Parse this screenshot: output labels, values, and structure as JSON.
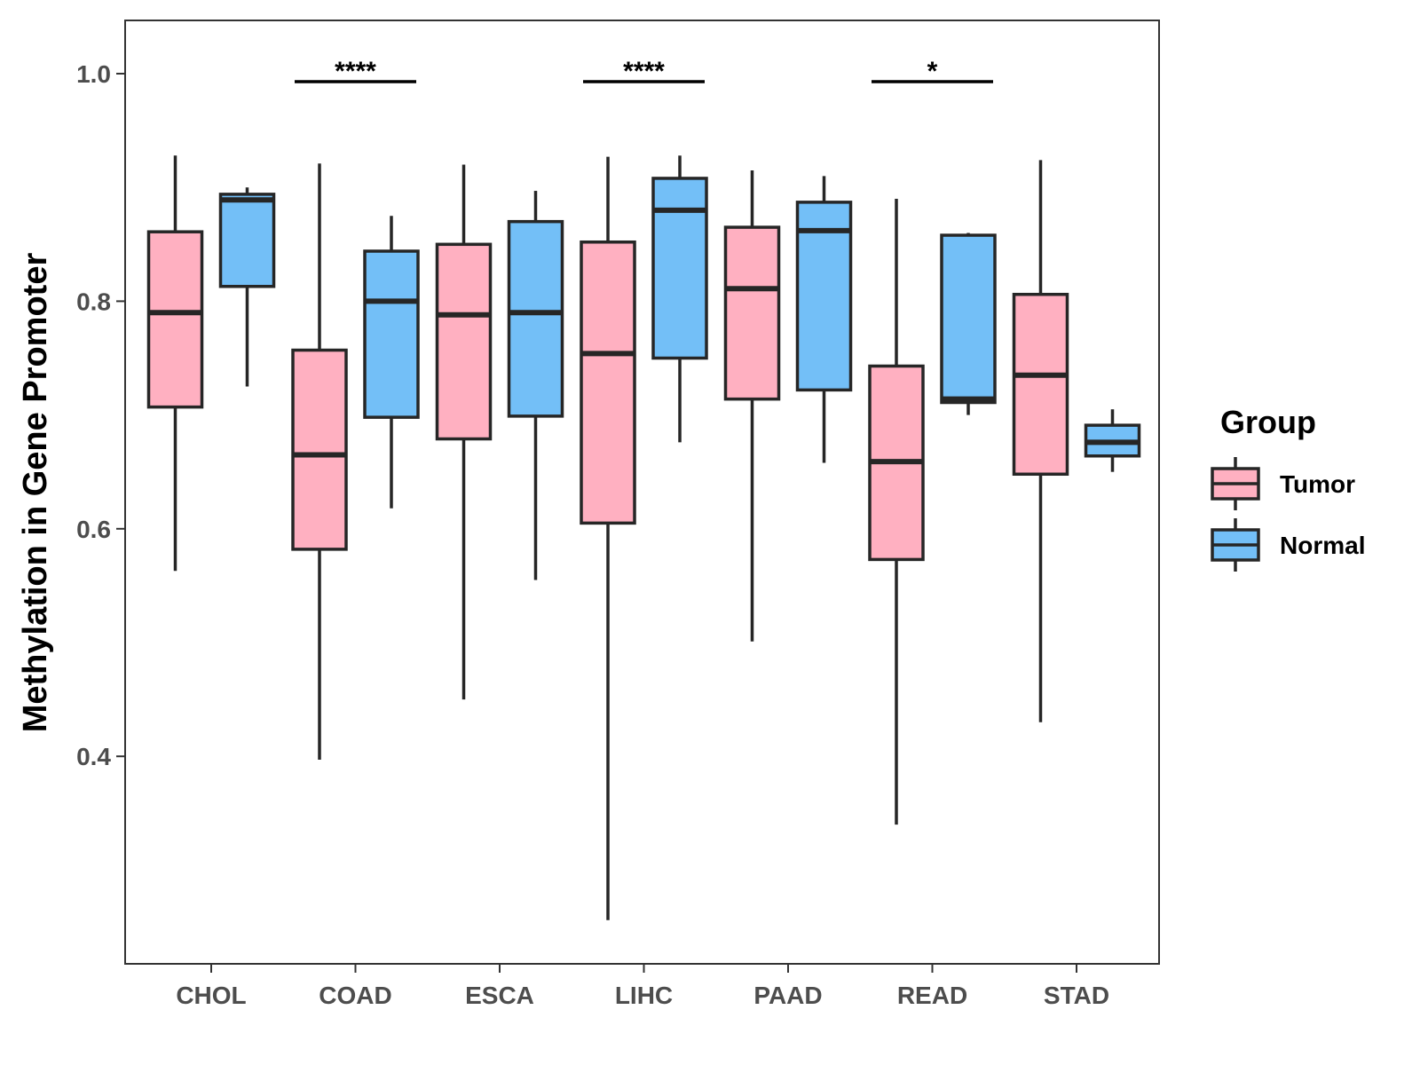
{
  "chart_data": {
    "type": "boxplot",
    "title": "",
    "xlabel": "",
    "ylabel": "Methylation in Gene Promoter",
    "ylim": [
      0.22,
      1.05
    ],
    "yticks": [
      0.4,
      0.6,
      0.8,
      1.0
    ],
    "ytick_labels": [
      "0.4",
      "0.6",
      "0.8",
      "1.0"
    ],
    "categories": [
      "CHOL",
      "COAD",
      "ESCA",
      "LIHC",
      "PAAD",
      "READ",
      "STAD"
    ],
    "legend": {
      "title": "Group",
      "position": "right",
      "entries": [
        {
          "name": "Tumor",
          "color": "#FFB0C1"
        },
        {
          "name": "Normal",
          "color": "#73BFF7"
        }
      ]
    },
    "series": [
      {
        "name": "Tumor",
        "color": "#FFB0C1",
        "boxes": [
          {
            "min": 0.563,
            "q1": 0.707,
            "median": 0.79,
            "q3": 0.861,
            "max": 0.928
          },
          {
            "min": 0.397,
            "q1": 0.582,
            "median": 0.665,
            "q3": 0.757,
            "max": 0.921
          },
          {
            "min": 0.45,
            "q1": 0.679,
            "median": 0.788,
            "q3": 0.85,
            "max": 0.92
          },
          {
            "min": 0.256,
            "q1": 0.605,
            "median": 0.754,
            "q3": 0.852,
            "max": 0.927
          },
          {
            "min": 0.501,
            "q1": 0.714,
            "median": 0.811,
            "q3": 0.865,
            "max": 0.915
          },
          {
            "min": 0.34,
            "q1": 0.573,
            "median": 0.659,
            "q3": 0.743,
            "max": 0.89
          },
          {
            "min": 0.43,
            "q1": 0.648,
            "median": 0.735,
            "q3": 0.806,
            "max": 0.924
          }
        ]
      },
      {
        "name": "Normal",
        "color": "#73BFF7",
        "boxes": [
          {
            "min": 0.725,
            "q1": 0.813,
            "median": 0.889,
            "q3": 0.894,
            "max": 0.9
          },
          {
            "min": 0.618,
            "q1": 0.698,
            "median": 0.8,
            "q3": 0.844,
            "max": 0.875
          },
          {
            "min": 0.555,
            "q1": 0.699,
            "median": 0.79,
            "q3": 0.87,
            "max": 0.897
          },
          {
            "min": 0.676,
            "q1": 0.75,
            "median": 0.88,
            "q3": 0.908,
            "max": 0.928
          },
          {
            "min": 0.658,
            "q1": 0.722,
            "median": 0.862,
            "q3": 0.887,
            "max": 0.91
          },
          {
            "min": 0.7,
            "q1": 0.711,
            "median": 0.714,
            "q3": 0.858,
            "max": 0.86
          },
          {
            "min": 0.65,
            "q1": 0.664,
            "median": 0.676,
            "q3": 0.691,
            "max": 0.705
          }
        ]
      }
    ],
    "significance": [
      {
        "category": "COAD",
        "label": "****",
        "y": 0.993
      },
      {
        "category": "LIHC",
        "label": "****",
        "y": 0.993
      },
      {
        "category": "READ",
        "label": "*",
        "y": 0.993
      }
    ]
  }
}
